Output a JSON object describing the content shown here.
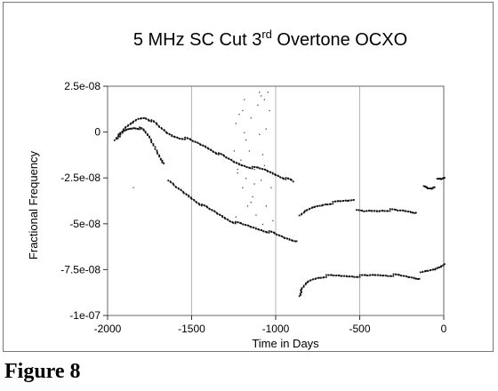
{
  "caption": "Figure 8",
  "chart_data": {
    "type": "scatter",
    "title_main": "5 MHz SC Cut 3",
    "title_sup": "rd",
    "title_rest": " Overtone OCXO",
    "xlabel": "Time in Days",
    "ylabel": "Fractional Frequency",
    "xlim": [
      -2000,
      0
    ],
    "ylim": [
      -1e-07,
      2.5e-08
    ],
    "x_ticks": [
      -2000,
      -1500,
      -1000,
      -500,
      0
    ],
    "x_tick_labels": [
      "-2000",
      "-1500",
      "-1000",
      "-500",
      "0"
    ],
    "y_ticks": [
      2.5e-08,
      0,
      -2.5e-08,
      -5e-08,
      -7.5e-08,
      -1e-07
    ],
    "y_tick_labels": [
      "2.5e-08",
      "0",
      "-2.5e-08",
      "-5e-08",
      "-7.5e-08",
      "-1e-07"
    ],
    "grid": "vertical",
    "legend": "none",
    "point_color": "#111111",
    "series": [
      {
        "x": [
          -1940,
          -1900,
          -1860,
          -1820,
          -1780,
          -1740,
          -1700,
          -1660,
          -1620,
          -1580,
          -1540,
          -1500,
          -1460,
          -1420,
          -1380,
          -1340,
          -1300,
          -1260,
          -1220,
          -1180,
          -1140,
          -1100,
          -1060,
          -1020,
          -980,
          -940,
          -900
        ],
        "y": [
          -4e-09,
          2e-09,
          5e-09,
          7.5e-09,
          8e-09,
          6e-09,
          3e-09,
          0,
          -2e-09,
          -3e-09,
          -3.5e-09,
          -5e-09,
          -6.5e-09,
          -8e-09,
          -1e-08,
          -1.2e-08,
          -1.4e-08,
          -1.6e-08,
          -1.75e-08,
          -1.85e-08,
          -1.95e-08,
          -2e-08,
          -2.1e-08,
          -2.25e-08,
          -2.4e-08,
          -2.55e-08,
          -2.7e-08
        ]
      },
      {
        "x": [
          -1960,
          -1930,
          -1900,
          -1870,
          -1840,
          -1810,
          -1780,
          -1750,
          -1720,
          -1690,
          -1670
        ],
        "y": [
          -5e-09,
          -1e-09,
          1e-09,
          2e-09,
          2.5e-09,
          2e-09,
          0,
          -4e-09,
          -9e-09,
          -1.4e-08,
          -1.7e-08
        ]
      },
      {
        "x": [
          -1640,
          -1600,
          -1560,
          -1520,
          -1480,
          -1440,
          -1400,
          -1360,
          -1320,
          -1280,
          -1240,
          -1200,
          -1160,
          -1120,
          -1080,
          -1040,
          -1000,
          -960,
          -920,
          -880
        ],
        "y": [
          -2.7e-08,
          -3e-08,
          -3.25e-08,
          -3.5e-08,
          -3.75e-08,
          -4e-08,
          -4.2e-08,
          -4.4e-08,
          -4.6e-08,
          -4.8e-08,
          -4.95e-08,
          -5.05e-08,
          -5.15e-08,
          -5.25e-08,
          -5.35e-08,
          -5.45e-08,
          -5.6e-08,
          -5.75e-08,
          -5.85e-08,
          -5.95e-08
        ]
      },
      {
        "x": [
          -860,
          -820,
          -780,
          -740,
          -700,
          -660,
          -620,
          -580,
          -540
        ],
        "y": [
          -4.6e-08,
          -4.3e-08,
          -4.1e-08,
          -4e-08,
          -3.9e-08,
          -3.85e-08,
          -3.8e-08,
          -3.75e-08,
          -3.7e-08
        ]
      },
      {
        "x": [
          -520,
          -480,
          -440,
          -400,
          -360,
          -320,
          -280,
          -240,
          -200,
          -170
        ],
        "y": [
          -4.3e-08,
          -4.35e-08,
          -4.3e-08,
          -4.3e-08,
          -4.25e-08,
          -4.25e-08,
          -4.3e-08,
          -4.3e-08,
          -4.35e-08,
          -4.4e-08
        ]
      },
      {
        "x": [
          -120,
          -100,
          -80,
          -60
        ],
        "y": [
          -3e-08,
          -3.1e-08,
          -3.1e-08,
          -3e-08
        ]
      },
      {
        "x": [
          -40,
          -20,
          0
        ],
        "y": [
          -2.6e-08,
          -2.6e-08,
          -2.5e-08
        ]
      },
      {
        "x": [
          -860,
          -850,
          -820,
          -780,
          -740,
          -700,
          -660,
          -620,
          -580,
          -540,
          -500,
          -460,
          -420,
          -380,
          -340,
          -300,
          -260,
          -220,
          -180,
          -150
        ],
        "y": [
          -9e-08,
          -8.6e-08,
          -8.2e-08,
          -8e-08,
          -7.9e-08,
          -7.85e-08,
          -7.85e-08,
          -7.85e-08,
          -7.85e-08,
          -7.85e-08,
          -7.85e-08,
          -7.85e-08,
          -7.8e-08,
          -7.8e-08,
          -7.8e-08,
          -7.8e-08,
          -7.85e-08,
          -7.9e-08,
          -7.95e-08,
          -8e-08
        ]
      },
      {
        "x": [
          -140,
          -100,
          -60,
          -30,
          0
        ],
        "y": [
          -7.7e-08,
          -7.6e-08,
          -7.5e-08,
          -7.35e-08,
          -7.2e-08
        ]
      }
    ],
    "outliers": {
      "x": [
        -1250,
        -1240,
        -1230,
        -1220,
        -1210,
        -1200,
        -1190,
        -1180,
        -1170,
        -1160,
        -1150,
        -1140,
        -1130,
        -1120,
        -1110,
        -1100,
        -1090,
        -1080,
        -1070,
        -1060,
        -1050,
        -1040,
        -1030,
        -1020,
        -1100,
        -1080,
        -1060,
        -1180,
        -1130,
        -1150,
        -1200,
        -1230,
        -1090,
        -1070,
        -1850,
        -1240,
        -1120,
        -1190
      ],
      "y": [
        -1e-08,
        5e-09,
        -2e-08,
        1e-08,
        -1.5e-08,
        -3e-08,
        0,
        -2.5e-08,
        -4e-08,
        -1e-08,
        8e-09,
        -3.5e-08,
        -2e-08,
        -4.5e-08,
        1.5e-08,
        2.2e-08,
        2e-08,
        -5e-08,
        1.8e-08,
        -4e-08,
        2.2e-08,
        1.2e-08,
        -3e-08,
        -4.8e-08,
        -1e-09,
        -1.2e-08,
        2e-09,
        -4e-09,
        -2.8e-08,
        -3.8e-08,
        1.2e-08,
        -2.2e-08,
        -2.6e-08,
        -1.8e-08,
        -3e-08,
        -4.6e-08,
        -5.2e-08,
        1.8e-08
      ]
    }
  }
}
